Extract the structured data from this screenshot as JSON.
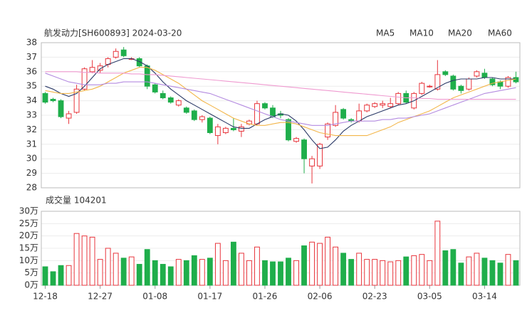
{
  "chart_data": {
    "type": "candlestick",
    "title": "航发动力[SH600893] 2024-03-20",
    "categories": [
      "12-18",
      null,
      null,
      null,
      null,
      null,
      null,
      "12-27",
      null,
      null,
      null,
      null,
      null,
      null,
      "01-08",
      null,
      null,
      null,
      null,
      null,
      null,
      "01-17",
      null,
      null,
      null,
      null,
      null,
      null,
      "01-26",
      null,
      null,
      null,
      null,
      null,
      null,
      "02-06",
      null,
      null,
      null,
      null,
      null,
      null,
      "02-23",
      null,
      null,
      null,
      null,
      null,
      null,
      "03-05",
      null,
      null,
      null,
      null,
      null,
      null,
      "03-14",
      null,
      null,
      null,
      null
    ],
    "open": [
      34.5,
      34.1,
      34.0,
      32.8,
      33.2,
      34.8,
      36.0,
      36.1,
      36.5,
      37.0,
      37.5,
      36.9,
      36.9,
      36.4,
      35.1,
      34.5,
      34.2,
      33.7,
      33.5,
      33.3,
      32.7,
      32.8,
      31.6,
      31.8,
      32.1,
      31.9,
      32.4,
      32.4,
      33.8,
      33.5,
      33.1,
      32.7,
      31.2,
      31.3,
      29.5,
      29.5,
      31.5,
      32.3,
      33.4,
      32.7,
      32.6,
      33.3,
      33.6,
      33.7,
      33.6,
      33.8,
      34.5,
      33.5,
      34.5,
      35.0,
      34.8,
      36.0,
      35.7,
      35.0,
      34.8,
      35.7,
      35.9,
      35.5,
      35.3,
      35.0,
      35.6
    ],
    "high": [
      34.6,
      34.2,
      34.1,
      33.3,
      35.1,
      36.3,
      36.8,
      36.6,
      37.0,
      37.6,
      37.7,
      37.0,
      37.0,
      36.5,
      35.2,
      34.7,
      34.3,
      34.1,
      33.6,
      33.4,
      33.0,
      32.9,
      32.4,
      32.2,
      32.8,
      32.4,
      32.7,
      34.0,
      33.9,
      33.7,
      33.3,
      32.8,
      31.5,
      31.4,
      30.2,
      31.1,
      32.5,
      33.7,
      33.5,
      32.8,
      33.8,
      33.8,
      33.9,
      34.0,
      34.2,
      34.6,
      34.7,
      34.6,
      35.3,
      35.1,
      36.8,
      36.1,
      35.8,
      35.1,
      35.6,
      36.1,
      36.2,
      35.6,
      35.4,
      35.7,
      36.0
    ],
    "low": [
      33.8,
      33.9,
      32.8,
      32.4,
      33.1,
      34.7,
      35.9,
      35.9,
      36.3,
      36.9,
      37.0,
      36.8,
      36.3,
      34.8,
      34.5,
      34.1,
      33.8,
      33.6,
      33.1,
      32.6,
      32.5,
      31.7,
      31.0,
      31.7,
      31.9,
      31.5,
      32.3,
      32.3,
      33.4,
      32.8,
      32.8,
      31.2,
      31.1,
      29.0,
      28.3,
      29.3,
      31.3,
      32.2,
      32.7,
      32.5,
      32.5,
      33.2,
      33.5,
      33.5,
      33.5,
      33.7,
      33.8,
      33.4,
      34.4,
      34.9,
      34.7,
      35.7,
      34.7,
      34.5,
      34.7,
      35.6,
      35.5,
      35.0,
      34.8,
      34.9,
      35.2
    ],
    "close": [
      33.9,
      34.0,
      32.9,
      33.1,
      34.8,
      36.2,
      36.3,
      36.4,
      36.9,
      37.4,
      37.1,
      36.9,
      36.4,
      35.0,
      34.6,
      34.2,
      33.9,
      34.0,
      33.2,
      32.7,
      32.9,
      31.8,
      32.2,
      32.1,
      32.0,
      32.2,
      32.6,
      33.8,
      33.5,
      32.9,
      33.0,
      31.3,
      31.4,
      30.0,
      30.0,
      31.0,
      32.4,
      33.2,
      32.8,
      32.6,
      33.3,
      33.7,
      33.8,
      33.8,
      33.8,
      34.5,
      33.9,
      34.5,
      35.2,
      35.0,
      35.8,
      35.8,
      34.8,
      34.7,
      35.5,
      36.0,
      35.6,
      35.1,
      35.0,
      35.6,
      35.3
    ],
    "volume": [
      7.5,
      5.5,
      8,
      8,
      21,
      20,
      19.5,
      10.5,
      15,
      13,
      11,
      11.5,
      8.5,
      14.5,
      10,
      8.5,
      7.5,
      10.5,
      10,
      12,
      10.5,
      11,
      17,
      10,
      17.5,
      13,
      10,
      15.5,
      10,
      9.5,
      9.5,
      11,
      10,
      16,
      17.5,
      17,
      19.5,
      15.5,
      13,
      10.5,
      13,
      10.5,
      10.5,
      10,
      9.5,
      10,
      11.5,
      12,
      12.5,
      10,
      26,
      14,
      14.5,
      9,
      11.5,
      13,
      11,
      10,
      9,
      12.5,
      10
    ],
    "series": [
      {
        "name": "MA5",
        "color": "#2b3a67",
        "values": [
          35.0,
          34.8,
          34.5,
          34.3,
          34.5,
          35.0,
          35.6,
          36.2,
          36.5,
          36.7,
          36.9,
          36.9,
          36.7,
          36.4,
          35.9,
          35.3,
          34.8,
          34.4,
          34.0,
          33.7,
          33.4,
          33.1,
          32.8,
          32.5,
          32.2,
          32.1,
          32.1,
          32.4,
          32.7,
          32.9,
          33.1,
          33.0,
          32.6,
          32.0,
          31.3,
          30.7,
          30.8,
          31.3,
          31.9,
          32.3,
          32.6,
          32.9,
          33.1,
          33.3,
          33.5,
          33.7,
          33.8,
          34.0,
          34.3,
          34.6,
          34.9,
          35.2,
          35.4,
          35.5,
          35.5,
          35.5,
          35.6,
          35.6,
          35.5,
          35.5,
          35.5
        ]
      },
      {
        "name": "MA10",
        "color": "#f3b64a",
        "values": [
          34.7,
          34.6,
          34.5,
          34.5,
          34.6,
          34.7,
          34.8,
          35.0,
          35.3,
          35.6,
          35.9,
          36.1,
          36.3,
          36.3,
          36.1,
          35.8,
          35.5,
          35.2,
          34.8,
          34.4,
          34.0,
          33.7,
          33.4,
          33.1,
          32.8,
          32.6,
          32.4,
          32.3,
          32.3,
          32.4,
          32.5,
          32.5,
          32.4,
          32.2,
          32.0,
          31.8,
          31.7,
          31.6,
          31.6,
          31.6,
          31.6,
          31.6,
          31.8,
          32.0,
          32.2,
          32.5,
          32.7,
          32.9,
          33.1,
          33.3,
          33.6,
          33.9,
          34.2,
          34.4,
          34.6,
          34.8,
          35.0,
          35.2,
          35.3,
          35.4,
          35.5
        ]
      },
      {
        "name": "MA20",
        "color": "#b48be0",
        "values": [
          35.9,
          35.7,
          35.5,
          35.3,
          35.2,
          35.1,
          35.1,
          35.1,
          35.2,
          35.2,
          35.3,
          35.3,
          35.3,
          35.3,
          35.2,
          35.1,
          35.0,
          34.9,
          34.8,
          34.7,
          34.6,
          34.5,
          34.3,
          34.1,
          33.9,
          33.7,
          33.5,
          33.3,
          33.1,
          32.9,
          32.7,
          32.6,
          32.5,
          32.4,
          32.3,
          32.3,
          32.3,
          32.4,
          32.5,
          32.6,
          32.6,
          32.6,
          32.6,
          32.7,
          32.7,
          32.8,
          32.8,
          32.9,
          33.0,
          33.1,
          33.3,
          33.5,
          33.7,
          33.9,
          34.1,
          34.3,
          34.5,
          34.6,
          34.7,
          34.8,
          34.9
        ]
      },
      {
        "name": "MA60",
        "color": "#ef9ad0",
        "values": [
          36.0,
          36.0,
          36.0,
          36.0,
          36.0,
          35.95,
          35.95,
          35.9,
          35.9,
          35.9,
          35.9,
          35.85,
          35.85,
          35.8,
          35.8,
          35.75,
          35.7,
          35.65,
          35.6,
          35.55,
          35.5,
          35.45,
          35.4,
          35.35,
          35.3,
          35.25,
          35.2,
          35.15,
          35.1,
          35.05,
          35.0,
          34.95,
          34.9,
          34.85,
          34.8,
          34.75,
          34.7,
          34.65,
          34.6,
          34.55,
          34.5,
          34.45,
          34.4,
          34.35,
          34.3,
          34.25,
          34.2,
          34.2,
          34.15,
          34.15,
          34.1,
          34.1,
          34.1,
          34.1,
          34.1,
          34.1,
          34.1,
          34.1,
          34.1,
          34.1,
          34.1
        ]
      }
    ],
    "ylim": [
      28,
      38
    ],
    "yticks": [
      28,
      29,
      30,
      31,
      32,
      33,
      34,
      35,
      36,
      37,
      38
    ],
    "volume_label": "成交量 104201",
    "volume_ylim": [
      0,
      30
    ],
    "volume_yticks": [
      {
        "value": 0,
        "label": "0万"
      },
      {
        "value": 5,
        "label": "5万"
      },
      {
        "value": 10,
        "label": "10万"
      },
      {
        "value": 15,
        "label": "15万"
      },
      {
        "value": 20,
        "label": "20万"
      },
      {
        "value": 25,
        "label": "25万"
      },
      {
        "value": 30,
        "label": "30万"
      }
    ],
    "up_color": "#e8353c",
    "down_color": "#1fae4b",
    "grid": true
  }
}
